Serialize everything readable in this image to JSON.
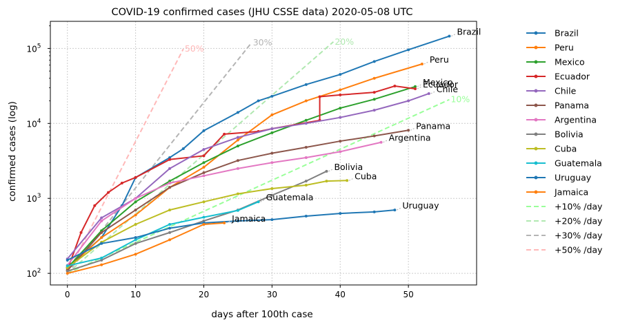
{
  "chart_data": {
    "type": "line",
    "title": "COVID-19 confirmed cases (JHU CSSE data) 2020-05-08 UTC",
    "xlabel": "days after 100th case",
    "ylabel": "confirmed cases (log)",
    "xlim": [
      -2.5,
      60
    ],
    "ylim": [
      70,
      230000
    ],
    "y_scale": "log",
    "x_ticks": [
      0,
      10,
      20,
      30,
      40,
      50
    ],
    "y_ticks": [
      {
        "value": 100,
        "base": "10",
        "exp": "2"
      },
      {
        "value": 1000,
        "base": "10",
        "exp": "3"
      },
      {
        "value": 10000,
        "base": "10",
        "exp": "4"
      },
      {
        "value": 100000,
        "base": "10",
        "exp": "5"
      }
    ],
    "grid": true,
    "legend_position": "outside-right",
    "series": [
      {
        "name": "Brazil",
        "color": "#1f77b4",
        "last_x": 56,
        "label": "Brazil",
        "points": [
          [
            0,
            121
          ],
          [
            5,
            300
          ],
          [
            8,
            800
          ],
          [
            10,
            1900
          ],
          [
            15,
            3500
          ],
          [
            17,
            4600
          ],
          [
            20,
            8000
          ],
          [
            25,
            14000
          ],
          [
            28,
            20000
          ],
          [
            30,
            23000
          ],
          [
            35,
            33000
          ],
          [
            40,
            45000
          ],
          [
            45,
            67000
          ],
          [
            50,
            96000
          ],
          [
            56,
            146000
          ]
        ]
      },
      {
        "name": "Peru",
        "color": "#ff7f0e",
        "last_x": 52,
        "label": "Peru",
        "points": [
          [
            0,
            117
          ],
          [
            5,
            300
          ],
          [
            10,
            600
          ],
          [
            15,
            1400
          ],
          [
            20,
            2600
          ],
          [
            25,
            6000
          ],
          [
            30,
            13000
          ],
          [
            35,
            20000
          ],
          [
            40,
            28000
          ],
          [
            45,
            40000
          ],
          [
            52,
            62000
          ]
        ]
      },
      {
        "name": "Mexico",
        "color": "#2ca02c",
        "last_x": 51,
        "label": "Mexico",
        "points": [
          [
            0,
            118
          ],
          [
            5,
            370
          ],
          [
            10,
            900
          ],
          [
            15,
            1700
          ],
          [
            20,
            3000
          ],
          [
            25,
            5000
          ],
          [
            30,
            7500
          ],
          [
            35,
            11000
          ],
          [
            40,
            16000
          ],
          [
            45,
            21000
          ],
          [
            51,
            31000
          ]
        ]
      },
      {
        "name": "Ecuador",
        "color": "#d62728",
        "last_x": 51,
        "label": "Ecuador",
        "points": [
          [
            0,
            111
          ],
          [
            2,
            350
          ],
          [
            4,
            800
          ],
          [
            6,
            1200
          ],
          [
            8,
            1600
          ],
          [
            10,
            1900
          ],
          [
            15,
            3300
          ],
          [
            20,
            3700
          ],
          [
            23,
            7200
          ],
          [
            28,
            7800
          ],
          [
            30,
            8500
          ],
          [
            37,
            11000
          ],
          [
            37,
            22700
          ],
          [
            40,
            24000
          ],
          [
            45,
            26000
          ],
          [
            48,
            31500
          ],
          [
            51,
            29000
          ]
        ]
      },
      {
        "name": "Chile",
        "color": "#9467bd",
        "last_x": 53,
        "label": "Chile",
        "points": [
          [
            0,
            156
          ],
          [
            5,
            550
          ],
          [
            10,
            1000
          ],
          [
            15,
            2500
          ],
          [
            20,
            4500
          ],
          [
            25,
            6500
          ],
          [
            30,
            8500
          ],
          [
            35,
            10000
          ],
          [
            40,
            12000
          ],
          [
            45,
            15000
          ],
          [
            50,
            20000
          ],
          [
            53,
            25000
          ]
        ]
      },
      {
        "name": "Panama",
        "color": "#8c564b",
        "last_x": 50,
        "label": "Panama",
        "points": [
          [
            0,
            109
          ],
          [
            5,
            350
          ],
          [
            10,
            700
          ],
          [
            15,
            1400
          ],
          [
            20,
            2200
          ],
          [
            25,
            3200
          ],
          [
            30,
            4000
          ],
          [
            35,
            4800
          ],
          [
            40,
            5800
          ],
          [
            45,
            6800
          ],
          [
            50,
            8100
          ]
        ]
      },
      {
        "name": "Argentina",
        "color": "#e377c2",
        "last_x": 46,
        "label": "Argentina",
        "points": [
          [
            0,
            128
          ],
          [
            5,
            500
          ],
          [
            10,
            1000
          ],
          [
            15,
            1600
          ],
          [
            20,
            2000
          ],
          [
            25,
            2500
          ],
          [
            30,
            3000
          ],
          [
            35,
            3500
          ],
          [
            40,
            4200
          ],
          [
            46,
            5600
          ]
        ]
      },
      {
        "name": "Bolivia",
        "color": "#7f7f7f",
        "last_x": 38,
        "label": "Bolivia",
        "points": [
          [
            0,
            107
          ],
          [
            5,
            150
          ],
          [
            10,
            250
          ],
          [
            15,
            350
          ],
          [
            20,
            500
          ],
          [
            25,
            700
          ],
          [
            30,
            1100
          ],
          [
            35,
            1700
          ],
          [
            38,
            2300
          ]
        ]
      },
      {
        "name": "Cuba",
        "color": "#bcbd22",
        "last_x": 41,
        "label": "Cuba",
        "points": [
          [
            0,
            119
          ],
          [
            5,
            260
          ],
          [
            10,
            450
          ],
          [
            15,
            700
          ],
          [
            20,
            900
          ],
          [
            25,
            1150
          ],
          [
            30,
            1350
          ],
          [
            35,
            1500
          ],
          [
            38,
            1700
          ],
          [
            41,
            1730
          ]
        ]
      },
      {
        "name": "Guatemala",
        "color": "#17becf",
        "last_x": 28,
        "label": "Guatemala",
        "points": [
          [
            0,
            126
          ],
          [
            5,
            160
          ],
          [
            10,
            280
          ],
          [
            15,
            450
          ],
          [
            20,
            560
          ],
          [
            25,
            690
          ],
          [
            28,
            900
          ]
        ]
      },
      {
        "name": "Uruguay",
        "color": "#1f77b4",
        "last_x": 48,
        "label": "Uruguay",
        "points": [
          [
            0,
            150
          ],
          [
            5,
            250
          ],
          [
            10,
            300
          ],
          [
            15,
            400
          ],
          [
            20,
            470
          ],
          [
            25,
            500
          ],
          [
            30,
            520
          ],
          [
            35,
            580
          ],
          [
            40,
            630
          ],
          [
            45,
            660
          ],
          [
            48,
            700
          ]
        ]
      },
      {
        "name": "Jamaica",
        "color": "#ff7f0e",
        "last_x": 23,
        "label": "Jamaica",
        "points": [
          [
            0,
            100
          ],
          [
            5,
            130
          ],
          [
            10,
            180
          ],
          [
            15,
            280
          ],
          [
            20,
            450
          ],
          [
            23,
            470
          ]
        ]
      }
    ],
    "reference_lines": [
      {
        "name": "+10% /day",
        "label": "10%",
        "rate": 0.1,
        "x_end": 56,
        "color": "#99ff99"
      },
      {
        "name": "+20% /day",
        "label": "20%",
        "rate": 0.2,
        "x_end": 39,
        "color": "#b0e8b0"
      },
      {
        "name": "+30% /day",
        "label": "30%",
        "rate": 0.3,
        "x_end": 27,
        "color": "#b4b4b4"
      },
      {
        "name": "+50% /day",
        "label": "50%",
        "rate": 0.5,
        "x_end": 17,
        "color": "#ffb8b8"
      }
    ]
  }
}
